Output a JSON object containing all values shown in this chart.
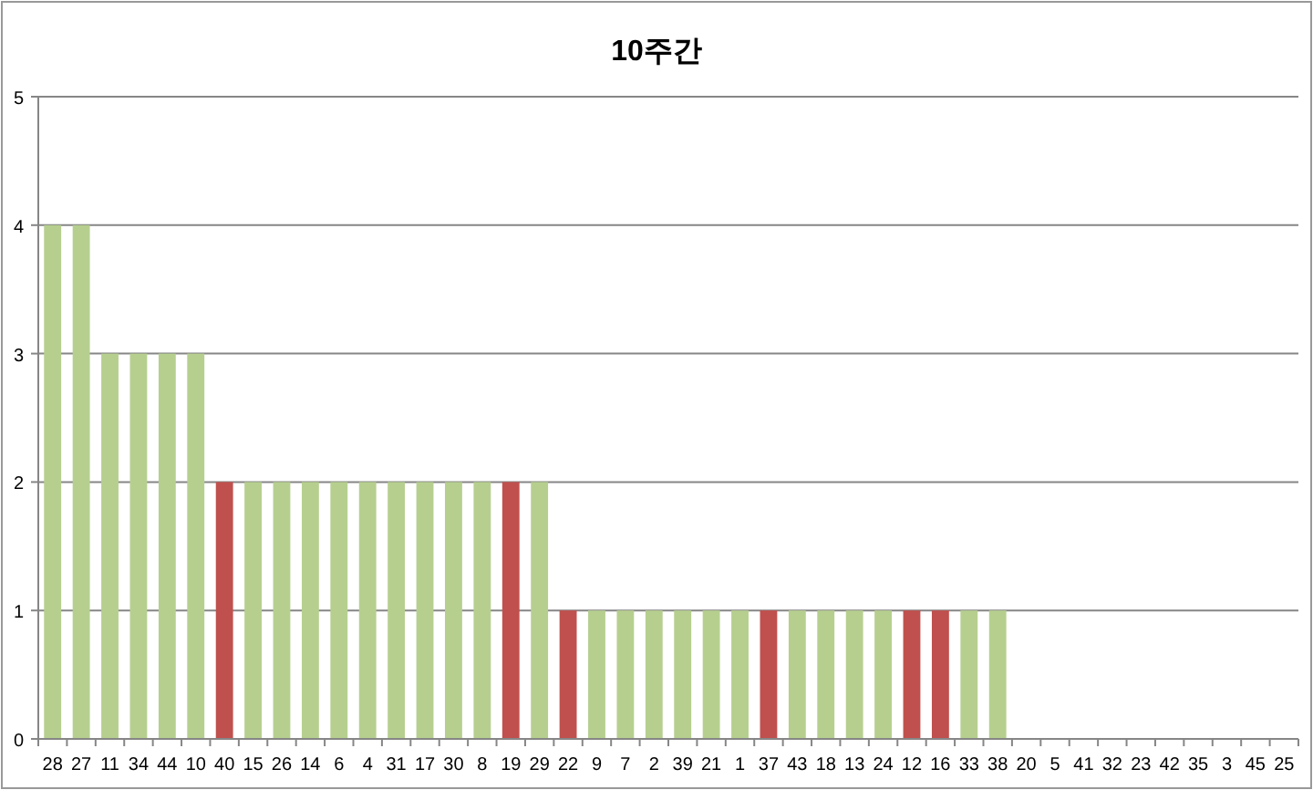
{
  "chart_data": {
    "type": "bar",
    "title": "10주간",
    "categories": [
      "28",
      "27",
      "11",
      "34",
      "44",
      "10",
      "40",
      "15",
      "26",
      "14",
      "6",
      "4",
      "31",
      "17",
      "30",
      "8",
      "19",
      "29",
      "22",
      "9",
      "7",
      "2",
      "39",
      "21",
      "1",
      "37",
      "43",
      "18",
      "13",
      "24",
      "12",
      "16",
      "33",
      "38",
      "20",
      "5",
      "41",
      "32",
      "23",
      "42",
      "35",
      "3",
      "45",
      "25"
    ],
    "values": [
      4,
      4,
      3,
      3,
      3,
      3,
      2,
      2,
      2,
      2,
      2,
      2,
      2,
      2,
      2,
      2,
      2,
      2,
      1,
      1,
      1,
      1,
      1,
      1,
      1,
      1,
      1,
      1,
      1,
      1,
      1,
      1,
      1,
      1,
      0,
      0,
      0,
      0,
      0,
      0,
      0,
      0,
      0,
      0
    ],
    "colors": [
      "#b6cf8f",
      "#b6cf8f",
      "#b6cf8f",
      "#b6cf8f",
      "#b6cf8f",
      "#b6cf8f",
      "#c0504d",
      "#b6cf8f",
      "#b6cf8f",
      "#b6cf8f",
      "#b6cf8f",
      "#b6cf8f",
      "#b6cf8f",
      "#b6cf8f",
      "#b6cf8f",
      "#b6cf8f",
      "#c0504d",
      "#b6cf8f",
      "#c0504d",
      "#b6cf8f",
      "#b6cf8f",
      "#b6cf8f",
      "#b6cf8f",
      "#b6cf8f",
      "#b6cf8f",
      "#c0504d",
      "#b6cf8f",
      "#b6cf8f",
      "#b6cf8f",
      "#b6cf8f",
      "#c0504d",
      "#c0504d",
      "#b6cf8f",
      "#b6cf8f",
      "#b6cf8f",
      "#b6cf8f",
      "#b6cf8f",
      "#b6cf8f",
      "#b6cf8f",
      "#b6cf8f",
      "#b6cf8f",
      "#b6cf8f",
      "#b6cf8f",
      "#b6cf8f"
    ],
    "ylim": [
      0,
      5
    ],
    "yticks": [
      0,
      1,
      2,
      3,
      4,
      5
    ],
    "grid": "y"
  }
}
